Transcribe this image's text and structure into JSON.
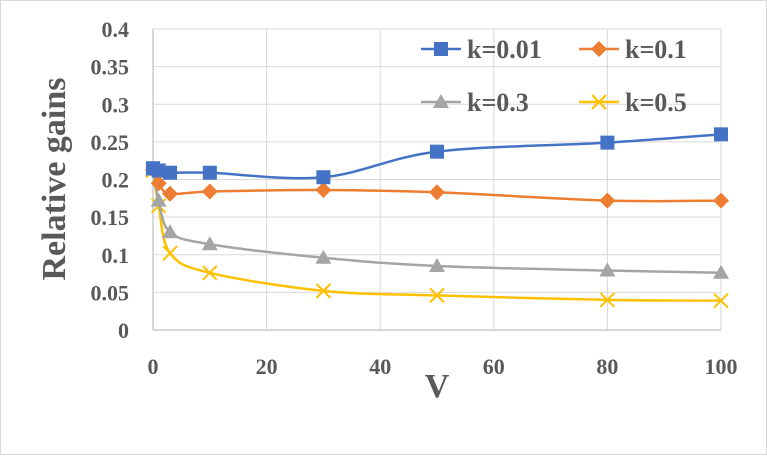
{
  "chart_data": {
    "type": "line",
    "title": "",
    "xlabel": "V",
    "ylabel": "Relative gains",
    "xlim": [
      0,
      100
    ],
    "ylim": [
      0,
      0.4
    ],
    "x_ticks": [
      "0",
      "20",
      "40",
      "60",
      "80",
      "100"
    ],
    "y_ticks": [
      "0",
      "0.05",
      "0.1",
      "0.15",
      "0.2",
      "0.25",
      "0.3",
      "0.35",
      "0.4"
    ],
    "grid": true,
    "legend_position": "top-right",
    "x": [
      0,
      1,
      3,
      10,
      30,
      50,
      80,
      100
    ],
    "series": [
      {
        "name": "k=0.01",
        "marker": "square",
        "color": "#4472C4",
        "values": [
          0.215,
          0.212,
          0.209,
          0.209,
          0.203,
          0.237,
          0.249,
          0.26
        ]
      },
      {
        "name": "k=0.1",
        "marker": "diamond",
        "color": "#ED7D31",
        "values": [
          0.213,
          0.195,
          0.181,
          0.184,
          0.186,
          0.183,
          0.172,
          0.172
        ]
      },
      {
        "name": "k=0.3",
        "marker": "triangle",
        "color": "#A5A5A5",
        "values": [
          0.213,
          0.172,
          0.13,
          0.114,
          0.096,
          0.085,
          0.079,
          0.076
        ]
      },
      {
        "name": "k=0.5",
        "marker": "x",
        "color": "#FFC000",
        "values": [
          0.212,
          0.165,
          0.102,
          0.076,
          0.052,
          0.046,
          0.04,
          0.039
        ]
      }
    ]
  }
}
